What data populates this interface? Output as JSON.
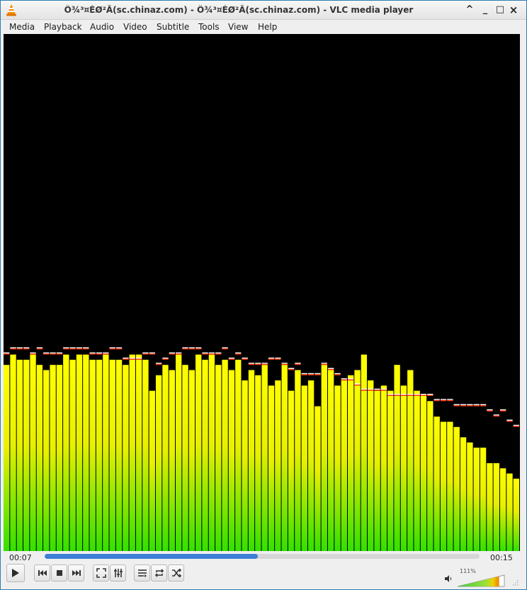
{
  "window": {
    "title": "Ô¾³¤ÉØ²Ã(sc.chinaz.com) - Ô¾³¤ÉØ²Ã(sc.chinaz.com) - VLC media player"
  },
  "menu": [
    "Media",
    "Playback",
    "Audio",
    "Video",
    "Subtitle",
    "Tools",
    "View",
    "Help"
  ],
  "window_controls": {
    "restore": "^",
    "minimize": "_",
    "maximize": "□",
    "close": "×"
  },
  "playback": {
    "elapsed": "00:07",
    "total": "00:15",
    "progress": 0.49
  },
  "volume": {
    "percent_label": "111%",
    "level": 1.11
  },
  "visualizer": {
    "bar_levels": [
      0.36,
      0.38,
      0.37,
      0.37,
      0.38,
      0.36,
      0.35,
      0.36,
      0.36,
      0.38,
      0.37,
      0.38,
      0.38,
      0.37,
      0.37,
      0.38,
      0.37,
      0.37,
      0.36,
      0.38,
      0.38,
      0.37,
      0.31,
      0.34,
      0.36,
      0.35,
      0.38,
      0.36,
      0.35,
      0.38,
      0.37,
      0.38,
      0.36,
      0.37,
      0.35,
      0.37,
      0.33,
      0.35,
      0.34,
      0.36,
      0.32,
      0.33,
      0.36,
      0.31,
      0.35,
      0.32,
      0.33,
      0.28,
      0.36,
      0.35,
      0.32,
      0.33,
      0.34,
      0.35,
      0.38,
      0.33,
      0.31,
      0.32,
      0.31,
      0.36,
      0.32,
      0.35,
      0.31,
      0.3,
      0.29,
      0.26,
      0.25,
      0.25,
      0.24,
      0.22,
      0.21,
      0.2,
      0.2,
      0.17,
      0.17,
      0.16,
      0.15,
      0.14
    ],
    "peak_levels": [
      0.38,
      0.39,
      0.39,
      0.39,
      0.38,
      0.39,
      0.38,
      0.38,
      0.38,
      0.39,
      0.39,
      0.39,
      0.39,
      0.38,
      0.38,
      0.38,
      0.39,
      0.39,
      0.37,
      0.37,
      0.37,
      0.38,
      0.38,
      0.36,
      0.37,
      0.38,
      0.38,
      0.39,
      0.39,
      0.39,
      0.38,
      0.38,
      0.38,
      0.39,
      0.37,
      0.38,
      0.37,
      0.36,
      0.36,
      0.36,
      0.37,
      0.37,
      0.36,
      0.35,
      0.36,
      0.34,
      0.34,
      0.34,
      0.36,
      0.35,
      0.34,
      0.33,
      0.33,
      0.32,
      0.31,
      0.31,
      0.31,
      0.31,
      0.3,
      0.3,
      0.3,
      0.3,
      0.3,
      0.3,
      0.3,
      0.29,
      0.29,
      0.29,
      0.28,
      0.28,
      0.28,
      0.28,
      0.28,
      0.27,
      0.26,
      0.27,
      0.25,
      0.24
    ],
    "colors": {
      "top": "#ffff00",
      "bottom": "#33e000",
      "peak": "#ffffff",
      "peak_edge": "#ff3300",
      "background": "#000000"
    }
  },
  "buttons": {
    "play": "play-icon",
    "previous": "skip-previous-icon",
    "stop": "stop-icon",
    "next": "skip-next-icon",
    "fullscreen": "fullscreen-icon",
    "extended": "equalizer-icon",
    "playlist": "playlist-icon",
    "loop": "loop-icon",
    "random": "shuffle-icon"
  }
}
